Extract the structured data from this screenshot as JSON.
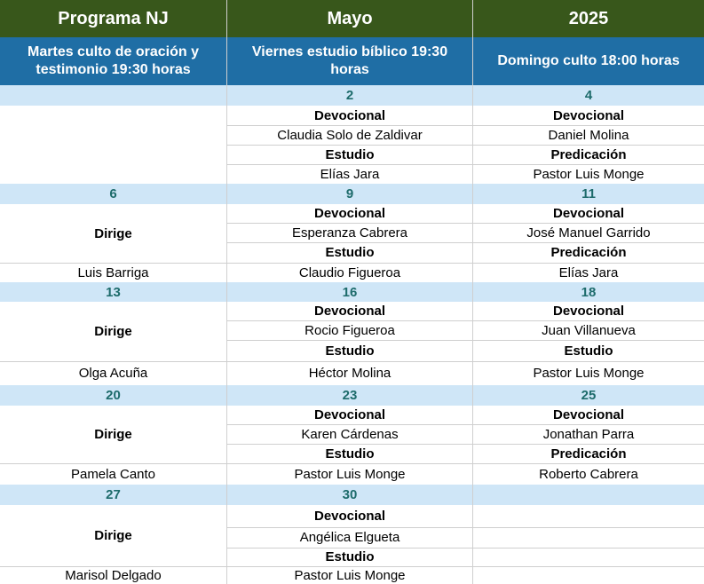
{
  "header": {
    "col1": "Programa NJ",
    "col2": "Mayo",
    "col3": "2025"
  },
  "subheader": {
    "col1": "Martes culto de oración y testimonio 19:30 horas",
    "col2": "Viernes estudio bíblico 19:30 horas",
    "col3": "Domingo culto 18:00 horas"
  },
  "weeks": [
    {
      "tue": {
        "date": "",
        "label": "",
        "name": ""
      },
      "fri": {
        "date": "2",
        "role1": "Devocional",
        "name1": "Claudia Solo de Zaldivar",
        "role2": "Estudio",
        "name2": "Elías Jara"
      },
      "sun": {
        "date": "4",
        "role1": "Devocional",
        "name1": "Daniel Molina",
        "role2": "Predicación",
        "name2": "Pastor Luis Monge"
      }
    },
    {
      "tue": {
        "date": "6",
        "label": "Dirige",
        "name": "Luis Barriga"
      },
      "fri": {
        "date": "9",
        "role1": "Devocional",
        "name1": "Esperanza Cabrera",
        "role2": "Estudio",
        "name2": "Claudio Figueroa"
      },
      "sun": {
        "date": "11",
        "role1": "Devocional",
        "name1": "José Manuel Garrido",
        "role2": "Predicación",
        "name2": "Elías Jara"
      }
    },
    {
      "tue": {
        "date": "13",
        "label": "Dirige",
        "name": "Olga Acuña"
      },
      "fri": {
        "date": "16",
        "role1": "Devocional",
        "name1": "Rocio Figueroa",
        "role2": "Estudio",
        "name2": "Héctor Molina"
      },
      "sun": {
        "date": "18",
        "role1": "Devocional",
        "name1": "Juan Villanueva",
        "role2": "Estudio",
        "name2": "Pastor Luis Monge"
      }
    },
    {
      "tue": {
        "date": "20",
        "label": "Dirige",
        "name": "Pamela Canto"
      },
      "fri": {
        "date": "23",
        "role1": "Devocional",
        "name1": "Karen Cárdenas",
        "role2": "Estudio",
        "name2": "Pastor Luis Monge"
      },
      "sun": {
        "date": "25",
        "role1": "Devocional",
        "name1": "Jonathan Parra",
        "role2": "Predicación",
        "name2": "Roberto Cabrera"
      }
    },
    {
      "tue": {
        "date": "27",
        "label": "Dirige",
        "name": "Marisol Delgado"
      },
      "fri": {
        "date": "30",
        "role1": "Devocional",
        "name1": "Angélica Elgueta",
        "role2": "Estudio",
        "name2": "Pastor Luis Monge"
      },
      "sun": {
        "date": "",
        "role1": "",
        "name1": "",
        "role2": "",
        "name2": ""
      }
    }
  ]
}
